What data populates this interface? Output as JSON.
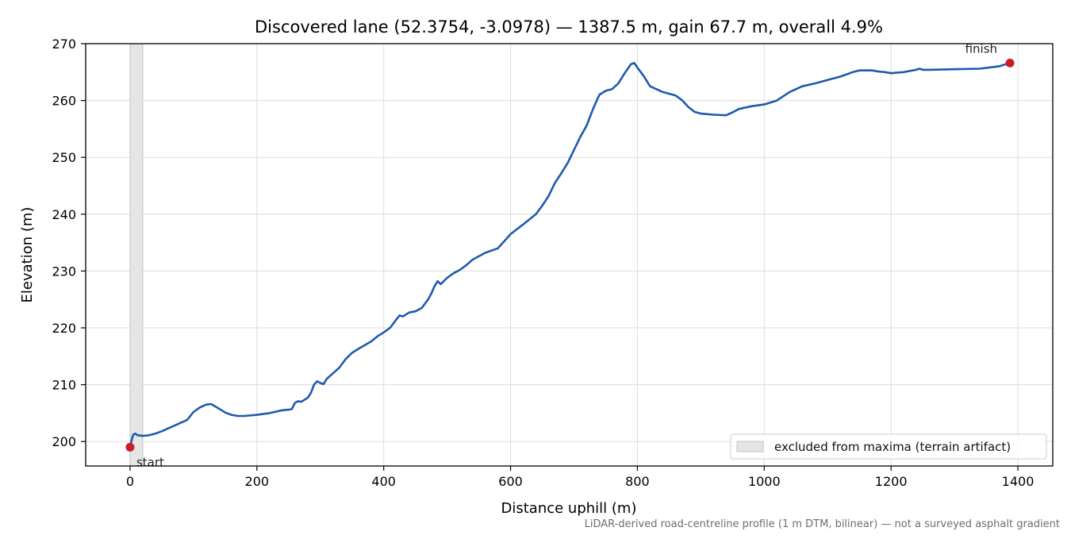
{
  "chart_data": {
    "type": "line",
    "title": "Discovered lane (52.3754, -3.0978) — 1387.5 m, gain 67.7 m, overall 4.9%",
    "xlabel": "Distance uphill (m)",
    "ylabel": "Elevation (m)",
    "xlim": [
      -70,
      1455
    ],
    "ylim": [
      195.7,
      270
    ],
    "xticks": [
      0,
      200,
      400,
      600,
      800,
      1000,
      1200,
      1400
    ],
    "yticks": [
      200,
      210,
      220,
      230,
      240,
      250,
      260,
      270
    ],
    "grid": true,
    "legend_position": "lower-right",
    "footnote": "LiDAR-derived road-centreline profile (1 m DTM, bilinear) — not a surveyed asphalt gradient",
    "excluded_region": {
      "label": "excluded from maxima (terrain artifact)",
      "x": [
        0,
        20
      ],
      "color": "#e5e5e5"
    },
    "series": [
      {
        "color": "#1f5aad",
        "x": [
          0,
          3,
          5,
          8,
          12,
          20,
          30,
          40,
          50,
          60,
          70,
          80,
          90,
          95,
          100,
          110,
          120,
          128,
          140,
          150,
          160,
          170,
          180,
          200,
          220,
          240,
          250,
          255,
          260,
          265,
          270,
          280,
          285,
          290,
          295,
          300,
          305,
          310,
          320,
          330,
          340,
          350,
          360,
          380,
          390,
          400,
          410,
          420,
          425,
          430,
          440,
          450,
          460,
          470,
          475,
          480,
          485,
          490,
          500,
          510,
          520,
          530,
          540,
          560,
          580,
          600,
          620,
          640,
          650,
          660,
          670,
          680,
          690,
          700,
          710,
          720,
          730,
          740,
          750,
          760,
          770,
          780,
          790,
          795,
          800,
          810,
          820,
          840,
          860,
          870,
          880,
          890,
          900,
          920,
          940,
          950,
          960,
          980,
          1000,
          1020,
          1040,
          1060,
          1080,
          1100,
          1120,
          1140,
          1150,
          1170,
          1180,
          1190,
          1200,
          1220,
          1240,
          1245,
          1250,
          1260,
          1300,
          1340,
          1370,
          1387.5
        ],
        "y": [
          199,
          200.5,
          201.2,
          201.4,
          201.1,
          201.0,
          201.1,
          201.4,
          201.8,
          202.3,
          202.8,
          203.3,
          203.8,
          204.5,
          205.2,
          206.0,
          206.5,
          206.6,
          205.8,
          205.1,
          204.7,
          204.5,
          204.5,
          204.7,
          205.0,
          205.5,
          205.6,
          205.7,
          206.8,
          207.1,
          207.0,
          207.7,
          208.5,
          210.0,
          210.6,
          210.3,
          210.1,
          211.0,
          212.0,
          213.0,
          214.5,
          215.6,
          216.3,
          217.6,
          218.5,
          219.2,
          220.0,
          221.5,
          222.2,
          222.0,
          222.7,
          222.9,
          223.5,
          225.0,
          226.0,
          227.3,
          228.2,
          227.7,
          228.8,
          229.6,
          230.2,
          231.0,
          232.0,
          233.2,
          234.0,
          236.5,
          238.2,
          240.0,
          241.5,
          243.2,
          245.5,
          247.2,
          249.0,
          251.3,
          253.6,
          255.6,
          258.5,
          261.0,
          261.7,
          262.0,
          263.0,
          264.8,
          266.4,
          266.6,
          265.8,
          264.3,
          262.5,
          261.5,
          260.9,
          260.1,
          258.9,
          258.0,
          257.7,
          257.5,
          257.4,
          257.9,
          258.5,
          259.0,
          259.3,
          260.0,
          261.5,
          262.5,
          263.0,
          263.6,
          264.2,
          265.0,
          265.3,
          265.3,
          265.1,
          265.0,
          264.8,
          265.0,
          265.4,
          265.6,
          265.4,
          265.4,
          265.5,
          265.6,
          266.0,
          266.6
        ]
      }
    ],
    "markers": [
      {
        "name": "start",
        "label": "start",
        "x": 0,
        "y": 199,
        "color": "#c81e28"
      },
      {
        "name": "finish",
        "label": "finish",
        "x": 1387.5,
        "y": 266.6,
        "color": "#c81e28"
      }
    ]
  }
}
